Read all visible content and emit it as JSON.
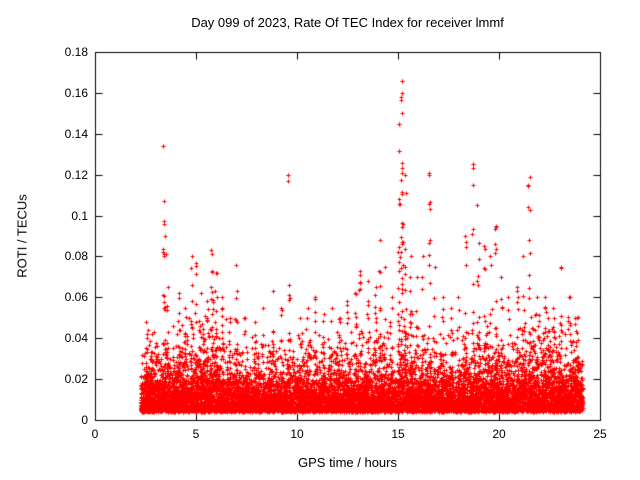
{
  "chart_data": {
    "type": "scatter",
    "title": "Day 099 of 2023, Rate Of TEC Index for receiver lmmf",
    "xlabel": "GPS time / hours",
    "ylabel": "ROTI / TECUs",
    "xlim": [
      0,
      25
    ],
    "ylim": [
      0,
      0.18
    ],
    "xticks": [
      "0",
      "5",
      "10",
      "15",
      "20",
      "25"
    ],
    "xtick_values": [
      0,
      5,
      10,
      15,
      20,
      25
    ],
    "yticks": [
      "0",
      "0.02",
      "0.04",
      "0.06",
      "0.08",
      "0.1",
      "0.12",
      "0.14",
      "0.16",
      "0.18"
    ],
    "ytick_values": [
      0,
      0.02,
      0.04,
      0.06,
      0.08,
      0.1,
      0.12,
      0.14,
      0.16,
      0.18
    ],
    "grid": false,
    "legend": "none",
    "marker": "+",
    "marker_color": "#ff0000",
    "axis_color": "#000000",
    "background": "#ffffff",
    "data_time_range_hours": [
      2.25,
      24.15
    ],
    "seed": 2023099,
    "baseline_band": {
      "y_floor": 0.004,
      "description": "dense band of ROTI values between ~0.005 and ~0.05 TECUs across the whole day",
      "bins": [
        [
          2.25,
          2.5,
          120,
          0.007,
          0.035
        ],
        [
          2.5,
          3.0,
          330,
          0.009,
          0.045
        ],
        [
          3.0,
          4.0,
          480,
          0.009,
          0.048
        ],
        [
          4.0,
          5.0,
          500,
          0.01,
          0.05
        ],
        [
          5.0,
          6.0,
          520,
          0.011,
          0.052
        ],
        [
          6.0,
          7.0,
          480,
          0.009,
          0.05
        ],
        [
          7.0,
          8.0,
          450,
          0.008,
          0.042
        ],
        [
          8.0,
          9.0,
          450,
          0.008,
          0.044
        ],
        [
          9.0,
          10.0,
          450,
          0.008,
          0.045
        ],
        [
          10.0,
          11.0,
          460,
          0.008,
          0.044
        ],
        [
          11.0,
          12.0,
          460,
          0.008,
          0.044
        ],
        [
          12.0,
          13.0,
          470,
          0.009,
          0.046
        ],
        [
          13.0,
          14.0,
          480,
          0.009,
          0.05
        ],
        [
          14.0,
          15.0,
          480,
          0.009,
          0.05
        ],
        [
          15.0,
          16.0,
          500,
          0.01,
          0.052
        ],
        [
          16.0,
          17.0,
          480,
          0.009,
          0.05
        ],
        [
          17.0,
          18.0,
          470,
          0.008,
          0.046
        ],
        [
          18.0,
          19.0,
          480,
          0.01,
          0.05
        ],
        [
          19.0,
          20.0,
          480,
          0.01,
          0.052
        ],
        [
          20.0,
          21.0,
          470,
          0.009,
          0.048
        ],
        [
          21.0,
          22.0,
          480,
          0.01,
          0.052
        ],
        [
          22.0,
          23.0,
          510,
          0.011,
          0.056
        ],
        [
          23.0,
          24.15,
          560,
          0.01,
          0.052
        ]
      ]
    },
    "spikes": [
      [
        2.55,
        0.048,
        10,
        0.08
      ],
      [
        2.8,
        0.042,
        8,
        0.08
      ],
      [
        3.38,
        0.134,
        8,
        0.05
      ],
      [
        3.45,
        0.107,
        20,
        0.1
      ],
      [
        3.6,
        0.065,
        12,
        0.08
      ],
      [
        4.15,
        0.062,
        12,
        0.08
      ],
      [
        4.5,
        0.055,
        10,
        0.08
      ],
      [
        4.78,
        0.08,
        16,
        0.08
      ],
      [
        4.98,
        0.077,
        12,
        0.06
      ],
      [
        5.2,
        0.062,
        10,
        0.08
      ],
      [
        5.55,
        0.058,
        10,
        0.08
      ],
      [
        5.8,
        0.083,
        18,
        0.1
      ],
      [
        6.0,
        0.072,
        14,
        0.08
      ],
      [
        6.3,
        0.06,
        10,
        0.08
      ],
      [
        6.65,
        0.05,
        8,
        0.08
      ],
      [
        7.0,
        0.076,
        14,
        0.08
      ],
      [
        7.4,
        0.05,
        8,
        0.08
      ],
      [
        7.9,
        0.048,
        8,
        0.08
      ],
      [
        8.3,
        0.055,
        10,
        0.08
      ],
      [
        8.8,
        0.063,
        10,
        0.08
      ],
      [
        9.2,
        0.055,
        8,
        0.08
      ],
      [
        9.55,
        0.12,
        3,
        0.03
      ],
      [
        9.62,
        0.066,
        10,
        0.08
      ],
      [
        10.1,
        0.05,
        8,
        0.08
      ],
      [
        10.5,
        0.055,
        8,
        0.08
      ],
      [
        10.9,
        0.06,
        10,
        0.08
      ],
      [
        11.3,
        0.052,
        8,
        0.08
      ],
      [
        11.7,
        0.055,
        8,
        0.08
      ],
      [
        12.1,
        0.05,
        8,
        0.08
      ],
      [
        12.5,
        0.058,
        10,
        0.08
      ],
      [
        12.9,
        0.062,
        10,
        0.08
      ],
      [
        13.1,
        0.073,
        12,
        0.06
      ],
      [
        13.5,
        0.068,
        10,
        0.08
      ],
      [
        13.9,
        0.065,
        10,
        0.08
      ],
      [
        14.1,
        0.088,
        8,
        0.05
      ],
      [
        14.35,
        0.075,
        8,
        0.06
      ],
      [
        14.7,
        0.06,
        8,
        0.08
      ],
      [
        15.05,
        0.145,
        22,
        0.08
      ],
      [
        15.18,
        0.166,
        36,
        0.1
      ],
      [
        15.35,
        0.12,
        18,
        0.08
      ],
      [
        15.6,
        0.08,
        10,
        0.08
      ],
      [
        15.9,
        0.07,
        8,
        0.08
      ],
      [
        16.2,
        0.08,
        10,
        0.08
      ],
      [
        16.55,
        0.12,
        14,
        0.08
      ],
      [
        16.8,
        0.075,
        8,
        0.06
      ],
      [
        17.2,
        0.06,
        8,
        0.08
      ],
      [
        17.6,
        0.055,
        8,
        0.08
      ],
      [
        18.0,
        0.06,
        8,
        0.08
      ],
      [
        18.35,
        0.09,
        12,
        0.08
      ],
      [
        18.7,
        0.125,
        18,
        0.08
      ],
      [
        18.95,
        0.105,
        20,
        0.1
      ],
      [
        19.3,
        0.085,
        10,
        0.08
      ],
      [
        19.6,
        0.08,
        10,
        0.08
      ],
      [
        19.85,
        0.095,
        12,
        0.08
      ],
      [
        20.1,
        0.07,
        8,
        0.08
      ],
      [
        20.5,
        0.06,
        8,
        0.08
      ],
      [
        20.9,
        0.065,
        8,
        0.08
      ],
      [
        21.2,
        0.08,
        8,
        0.08
      ],
      [
        21.5,
        0.115,
        12,
        0.1
      ],
      [
        21.9,
        0.06,
        8,
        0.08
      ],
      [
        22.3,
        0.06,
        8,
        0.08
      ],
      [
        22.7,
        0.055,
        10,
        0.08
      ],
      [
        23.1,
        0.075,
        10,
        0.08
      ],
      [
        23.5,
        0.06,
        8,
        0.08
      ],
      [
        23.9,
        0.05,
        6,
        0.08
      ]
    ],
    "outliers": [
      [
        3.38,
        0.134
      ],
      [
        9.55,
        0.12
      ],
      [
        15.18,
        0.166
      ],
      [
        15.16,
        0.158
      ],
      [
        15.22,
        0.15
      ],
      [
        15.05,
        0.145
      ],
      [
        16.55,
        0.121
      ],
      [
        18.7,
        0.125
      ],
      [
        21.55,
        0.119
      ]
    ]
  }
}
